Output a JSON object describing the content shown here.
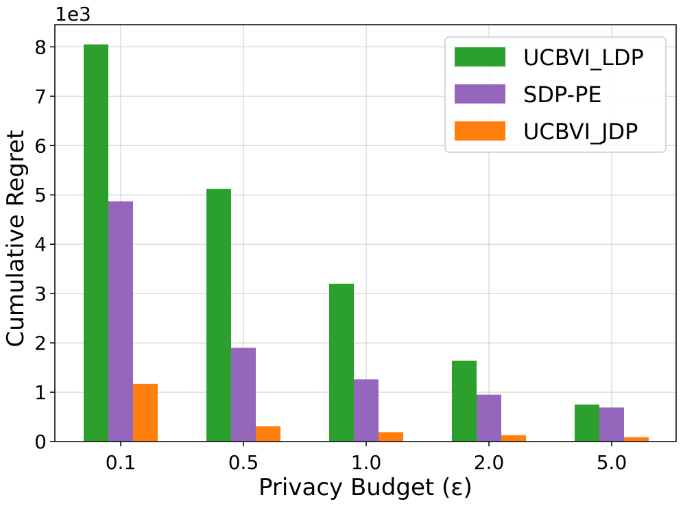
{
  "chart_data": {
    "type": "bar",
    "title": "",
    "xlabel": "Privacy Budget (ε)",
    "ylabel": "Cumulative Regret",
    "y_multiplier_label": "1e3",
    "categories": [
      "0.1",
      "0.5",
      "1.0",
      "2.0",
      "5.0"
    ],
    "series": [
      {
        "name": "UCBVI_LDP",
        "color": "#2ca02c",
        "values": [
          8.05,
          5.12,
          3.2,
          1.64,
          0.75
        ]
      },
      {
        "name": "SDP-PE",
        "color": "#9467bd",
        "values": [
          4.87,
          1.9,
          1.26,
          0.95,
          0.69
        ]
      },
      {
        "name": "UCBVI_JDP",
        "color": "#ff7f0e",
        "values": [
          1.17,
          0.31,
          0.19,
          0.13,
          0.09
        ]
      }
    ],
    "ylim": [
      0,
      8.45
    ],
    "yticks": [
      0,
      1,
      2,
      3,
      4,
      5,
      6,
      7,
      8
    ],
    "grid": true,
    "legend_position": "top-right"
  }
}
